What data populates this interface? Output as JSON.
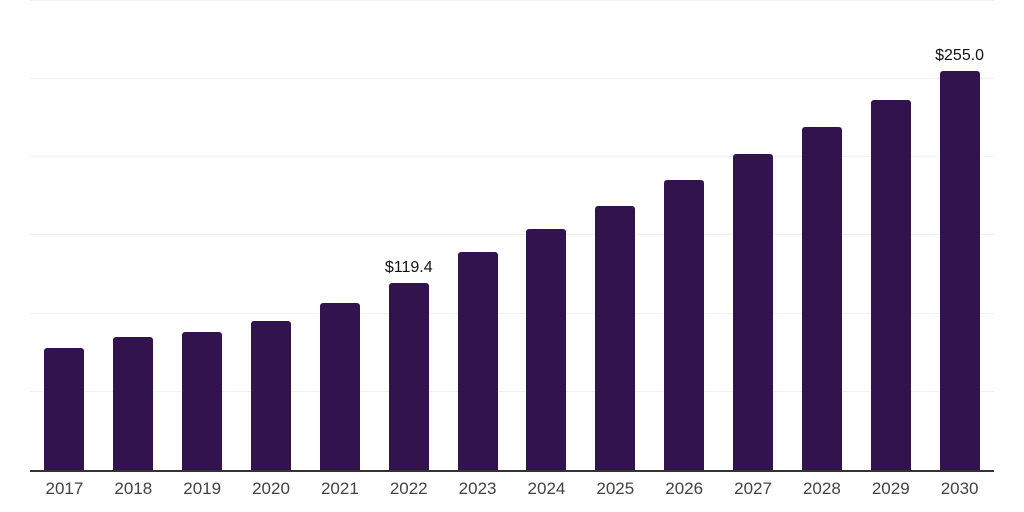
{
  "chart_data": {
    "type": "bar",
    "categories": [
      "2017",
      "2018",
      "2019",
      "2020",
      "2021",
      "2022",
      "2023",
      "2024",
      "2025",
      "2026",
      "2027",
      "2028",
      "2029",
      "2030"
    ],
    "values": [
      78.0,
      85.1,
      88.3,
      95.3,
      106.8,
      119.4,
      139.4,
      154.2,
      169.0,
      185.5,
      202.1,
      219.4,
      236.7,
      255.0
    ],
    "point_labels": [
      null,
      null,
      null,
      null,
      null,
      "$119.4",
      null,
      null,
      null,
      null,
      null,
      null,
      null,
      "$255.0"
    ],
    "title": "",
    "xlabel": "",
    "ylabel": "",
    "ylim": [
      0,
      300
    ],
    "gridline_step": 50,
    "grid": true,
    "legend": false,
    "colors": {
      "bar": "#33134E",
      "gridline": "#f1f1f3",
      "axis_line": "#333333",
      "tick_label": "#424242",
      "data_label": "#111111",
      "background": "#ffffff"
    }
  }
}
